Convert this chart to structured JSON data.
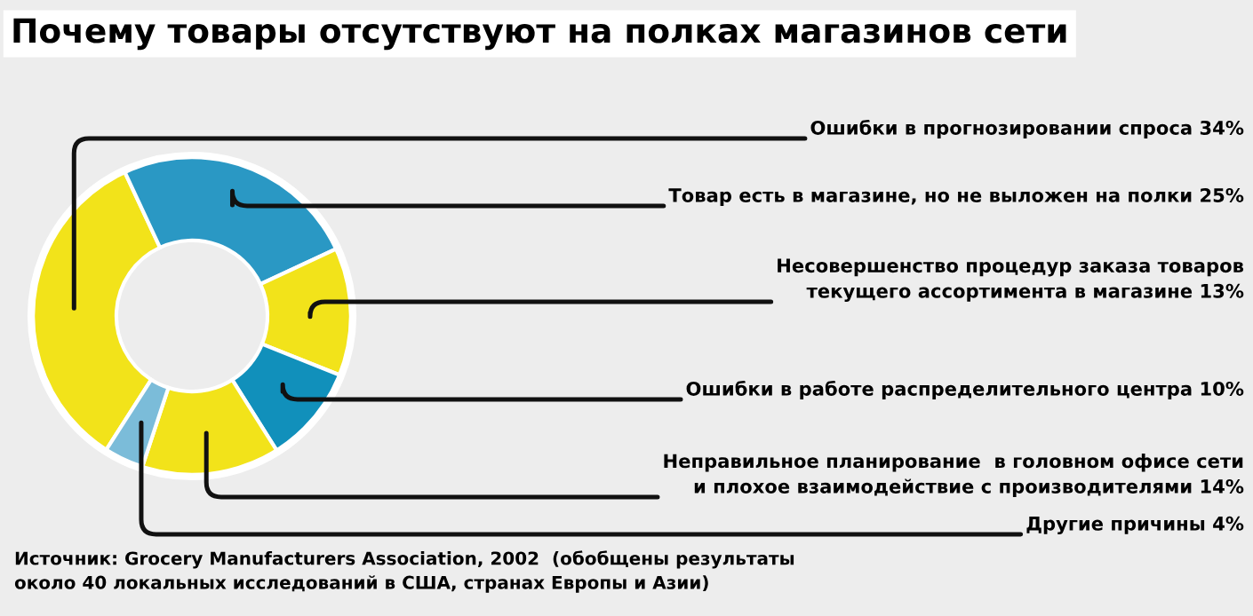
{
  "chart_data": {
    "type": "donut",
    "title": "Почему товары отсутствуют на полках магазинов сети",
    "categories": [
      "Ошибки в прогнозировании спроса",
      "Товар есть в магазине, но не выложен на полки",
      "Несовершенство процедур заказа товаров\nтекущего ассортимента в магазине",
      "Ошибки в работе распределительного центра",
      "Неправильное планирование  в головном офисе сети\nи плохое взаимодействие с производителями",
      "Другие причины"
    ],
    "values": [
      34,
      25,
      13,
      10,
      14,
      4
    ],
    "value_labels": [
      "34%",
      "25%",
      "13%",
      "10%",
      "14%",
      "4%"
    ],
    "colors": [
      "#f2e31a",
      "#2a98c4",
      "#f2e31a",
      "#1190bb",
      "#f2e31a",
      "#7bbcd9"
    ],
    "annotations": [
      "Источник: Grocery Manufacturers Association, 2002  (обобщены результаты\nоколо 40 локальных исследований в США, странах Европы и Азии)"
    ],
    "legend": false
  }
}
